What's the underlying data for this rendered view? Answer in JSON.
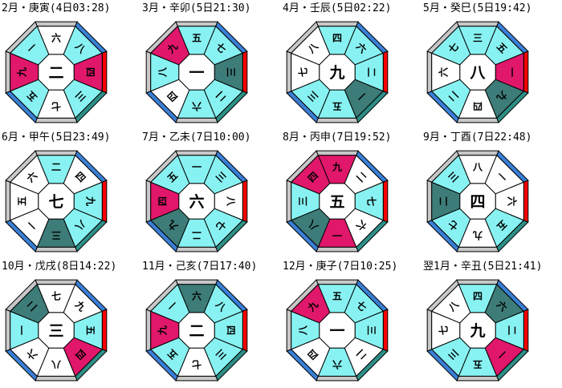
{
  "colors": {
    "magenta": "#e0176a",
    "teal": "#3d7c78",
    "light_cyan": "#88f2f2",
    "white": "#ffffff",
    "accent_red": "#ff0000",
    "accent_blue": "#3a7fd6",
    "accent_teal": "#2e8f87",
    "accent_gray": "#c8c8c8"
  },
  "charts": [
    {
      "title": "2月・庚寅(4日03:28)",
      "center": "二",
      "sectors": [
        {
          "label": "六",
          "fill": "white"
        },
        {
          "label": "八",
          "fill": "light_cyan"
        },
        {
          "label": "四",
          "fill": "magenta"
        },
        {
          "label": "三",
          "fill": "light_cyan"
        },
        {
          "label": "七",
          "fill": "white"
        },
        {
          "label": "五",
          "fill": "light_cyan"
        },
        {
          "label": "九",
          "fill": "magenta"
        },
        {
          "label": "一",
          "fill": "light_cyan"
        }
      ],
      "rim": [
        "gray",
        "blue",
        "red",
        "teal",
        "gray",
        "blue",
        "gray",
        "gray"
      ]
    },
    {
      "title": "3月・辛卯(5日21:30)",
      "center": "一",
      "sectors": [
        {
          "label": "五",
          "fill": "light_cyan"
        },
        {
          "label": "七",
          "fill": "light_cyan"
        },
        {
          "label": "三",
          "fill": "teal"
        },
        {
          "label": "二",
          "fill": "light_cyan"
        },
        {
          "label": "六",
          "fill": "light_cyan"
        },
        {
          "label": "四",
          "fill": "white"
        },
        {
          "label": "八",
          "fill": "light_cyan"
        },
        {
          "label": "九",
          "fill": "magenta"
        }
      ],
      "rim": [
        "gray",
        "blue",
        "red",
        "teal",
        "gray",
        "blue",
        "gray",
        "gray"
      ]
    },
    {
      "title": "4月・壬辰(5日02:22)",
      "center": "九",
      "sectors": [
        {
          "label": "四",
          "fill": "light_cyan"
        },
        {
          "label": "六",
          "fill": "light_cyan"
        },
        {
          "label": "二",
          "fill": "light_cyan"
        },
        {
          "label": "一",
          "fill": "teal"
        },
        {
          "label": "五",
          "fill": "light_cyan"
        },
        {
          "label": "三",
          "fill": "light_cyan"
        },
        {
          "label": "七",
          "fill": "white"
        },
        {
          "label": "八",
          "fill": "white"
        }
      ],
      "rim": [
        "gray",
        "blue",
        "red",
        "teal",
        "gray",
        "blue",
        "gray",
        "gray"
      ]
    },
    {
      "title": "5月・癸巳(5日19:42)",
      "center": "八",
      "sectors": [
        {
          "label": "三",
          "fill": "light_cyan"
        },
        {
          "label": "五",
          "fill": "light_cyan"
        },
        {
          "label": "一",
          "fill": "magenta"
        },
        {
          "label": "九",
          "fill": "teal"
        },
        {
          "label": "四",
          "fill": "white"
        },
        {
          "label": "二",
          "fill": "light_cyan"
        },
        {
          "label": "六",
          "fill": "white"
        },
        {
          "label": "七",
          "fill": "light_cyan"
        }
      ],
      "rim": [
        "gray",
        "blue",
        "red",
        "teal",
        "gray",
        "blue",
        "gray",
        "gray"
      ]
    },
    {
      "title": "6月・甲午(5日23:49)",
      "center": "七",
      "sectors": [
        {
          "label": "二",
          "fill": "light_cyan"
        },
        {
          "label": "四",
          "fill": "white"
        },
        {
          "label": "九",
          "fill": "light_cyan"
        },
        {
          "label": "八",
          "fill": "light_cyan"
        },
        {
          "label": "三",
          "fill": "teal"
        },
        {
          "label": "一",
          "fill": "white"
        },
        {
          "label": "五",
          "fill": "white"
        },
        {
          "label": "六",
          "fill": "white"
        }
      ],
      "rim": [
        "gray",
        "blue",
        "red",
        "teal",
        "gray",
        "blue",
        "gray",
        "gray"
      ]
    },
    {
      "title": "7月・乙未(7日10:00)",
      "center": "六",
      "sectors": [
        {
          "label": "一",
          "fill": "light_cyan"
        },
        {
          "label": "三",
          "fill": "light_cyan"
        },
        {
          "label": "八",
          "fill": "white"
        },
        {
          "label": "七",
          "fill": "light_cyan"
        },
        {
          "label": "二",
          "fill": "light_cyan"
        },
        {
          "label": "九",
          "fill": "teal"
        },
        {
          "label": "四",
          "fill": "magenta"
        },
        {
          "label": "五",
          "fill": "light_cyan"
        }
      ],
      "rim": [
        "gray",
        "blue",
        "red",
        "teal",
        "gray",
        "blue",
        "gray",
        "gray"
      ]
    },
    {
      "title": "8月・丙申(7日19:52)",
      "center": "五",
      "sectors": [
        {
          "label": "九",
          "fill": "magenta"
        },
        {
          "label": "二",
          "fill": "white"
        },
        {
          "label": "七",
          "fill": "light_cyan"
        },
        {
          "label": "六",
          "fill": "white"
        },
        {
          "label": "一",
          "fill": "magenta"
        },
        {
          "label": "八",
          "fill": "teal"
        },
        {
          "label": "三",
          "fill": "light_cyan"
        },
        {
          "label": "四",
          "fill": "magenta"
        }
      ],
      "rim": [
        "gray",
        "blue",
        "red",
        "teal",
        "gray",
        "blue",
        "gray",
        "gray"
      ]
    },
    {
      "title": "9月・丁酉(7日22:48)",
      "center": "四",
      "sectors": [
        {
          "label": "八",
          "fill": "white"
        },
        {
          "label": "一",
          "fill": "white"
        },
        {
          "label": "六",
          "fill": "white"
        },
        {
          "label": "五",
          "fill": "light_cyan"
        },
        {
          "label": "九",
          "fill": "white"
        },
        {
          "label": "七",
          "fill": "light_cyan"
        },
        {
          "label": "二",
          "fill": "teal"
        },
        {
          "label": "三",
          "fill": "light_cyan"
        }
      ],
      "rim": [
        "gray",
        "blue",
        "red",
        "teal",
        "gray",
        "blue",
        "gray",
        "gray"
      ]
    },
    {
      "title": "10月・戊戌(8日14:22)",
      "center": "三",
      "sectors": [
        {
          "label": "七",
          "fill": "white"
        },
        {
          "label": "九",
          "fill": "white"
        },
        {
          "label": "五",
          "fill": "light_cyan"
        },
        {
          "label": "四",
          "fill": "magenta"
        },
        {
          "label": "八",
          "fill": "white"
        },
        {
          "label": "六",
          "fill": "white"
        },
        {
          "label": "一",
          "fill": "light_cyan"
        },
        {
          "label": "二",
          "fill": "teal"
        }
      ],
      "rim": [
        "gray",
        "blue",
        "red",
        "teal",
        "gray",
        "blue",
        "gray",
        "gray"
      ]
    },
    {
      "title": "11月・己亥(7日17:40)",
      "center": "二",
      "sectors": [
        {
          "label": "六",
          "fill": "teal"
        },
        {
          "label": "八",
          "fill": "light_cyan"
        },
        {
          "label": "四",
          "fill": "light_cyan"
        },
        {
          "label": "三",
          "fill": "light_cyan"
        },
        {
          "label": "七",
          "fill": "white"
        },
        {
          "label": "五",
          "fill": "light_cyan"
        },
        {
          "label": "九",
          "fill": "magenta"
        },
        {
          "label": "一",
          "fill": "light_cyan"
        }
      ],
      "rim": [
        "gray",
        "blue",
        "red",
        "teal",
        "gray",
        "blue",
        "gray",
        "gray"
      ]
    },
    {
      "title": "12月・庚子(7日10:25)",
      "center": "一",
      "sectors": [
        {
          "label": "五",
          "fill": "light_cyan"
        },
        {
          "label": "七",
          "fill": "light_cyan"
        },
        {
          "label": "三",
          "fill": "light_cyan"
        },
        {
          "label": "二",
          "fill": "white"
        },
        {
          "label": "六",
          "fill": "light_cyan"
        },
        {
          "label": "四",
          "fill": "white"
        },
        {
          "label": "八",
          "fill": "light_cyan"
        },
        {
          "label": "九",
          "fill": "magenta"
        }
      ],
      "rim": [
        "gray",
        "blue",
        "red",
        "teal",
        "gray",
        "blue",
        "gray",
        "gray"
      ]
    },
    {
      "title": "翌1月・辛丑(5日21:41)",
      "center": "九",
      "sectors": [
        {
          "label": "四",
          "fill": "light_cyan"
        },
        {
          "label": "六",
          "fill": "teal"
        },
        {
          "label": "二",
          "fill": "light_cyan"
        },
        {
          "label": "一",
          "fill": "magenta"
        },
        {
          "label": "五",
          "fill": "light_cyan"
        },
        {
          "label": "三",
          "fill": "light_cyan"
        },
        {
          "label": "七",
          "fill": "white"
        },
        {
          "label": "八",
          "fill": "white"
        }
      ],
      "rim": [
        "gray",
        "blue",
        "red",
        "teal",
        "gray",
        "blue",
        "gray",
        "gray"
      ]
    }
  ]
}
